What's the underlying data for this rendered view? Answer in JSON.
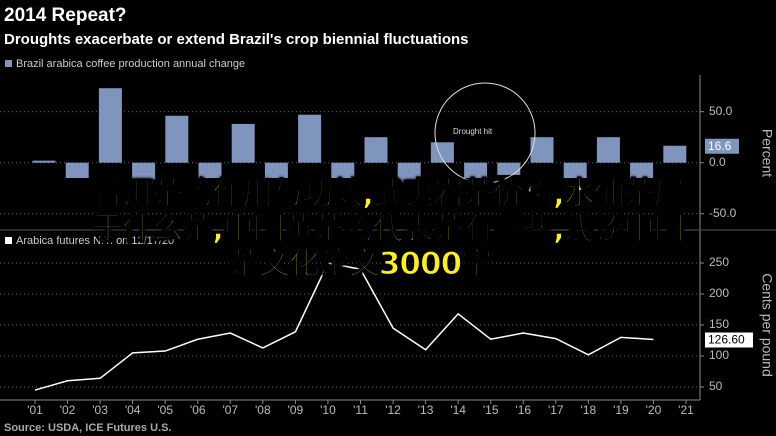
{
  "header": {
    "title": "2014 Repeat?",
    "subtitle": "Droughts exacerbate or extend Brazil's crop biennial fluctuations"
  },
  "source": "Source: USDA, ICE Futures U.S.",
  "overlay_lines": [
    "普洱茶的作用与功效,武夷岩茶价格,水仙茶属",
    "于什么茶,中国黄茶的代表茶有哪些,浅谈中国",
    "茶文化论文3000字"
  ],
  "chart_data": [
    {
      "type": "bar",
      "y_label": "Percent",
      "annotation": "Drought hit",
      "series": [
        {
          "name": "Brazil arabica coffee production annual change",
          "color": "#7f95bd",
          "values": [
            2,
            -15,
            73,
            -20,
            46,
            -15,
            38,
            -15,
            47,
            -15,
            25,
            -20,
            20,
            -15,
            -12,
            25,
            -15,
            25,
            -15,
            16.6,
            null
          ]
        }
      ],
      "ylim": [
        -64,
        83
      ],
      "yticks": [
        {
          "value": 50,
          "label": "50.0"
        },
        {
          "value": 0,
          "label": "0.0"
        },
        {
          "value": -50,
          "label": "-50.0"
        }
      ],
      "grid": true
    },
    {
      "type": "line",
      "y_label": "Cents per pound",
      "categories": [
        "'01",
        "'02",
        "'03",
        "'04",
        "'05",
        "'06",
        "'07",
        "'08",
        "'09",
        "'10",
        "'11",
        "'12",
        "'13",
        "'14",
        "'15",
        "'16",
        "'17",
        "'18",
        "'19",
        "'20",
        "'21"
      ],
      "series": [
        {
          "name": "Arabica futures N.Y. on 12/17/20",
          "color": "#ffffff",
          "values": [
            45,
            60,
            64,
            105,
            108,
            127,
            137,
            113,
            139,
            250,
            240,
            145,
            110,
            168,
            127,
            137,
            128,
            102,
            130,
            126.6,
            null
          ],
          "value_labels": [
            null,
            null,
            null,
            null,
            null,
            null,
            null,
            null,
            null,
            null,
            null,
            null,
            null,
            null,
            null,
            null,
            null,
            null,
            null,
            "126.60",
            null
          ]
        }
      ],
      "ylim": [
        29,
        271
      ],
      "yticks": [
        50,
        100,
        150,
        200,
        250
      ],
      "grid": true
    }
  ]
}
